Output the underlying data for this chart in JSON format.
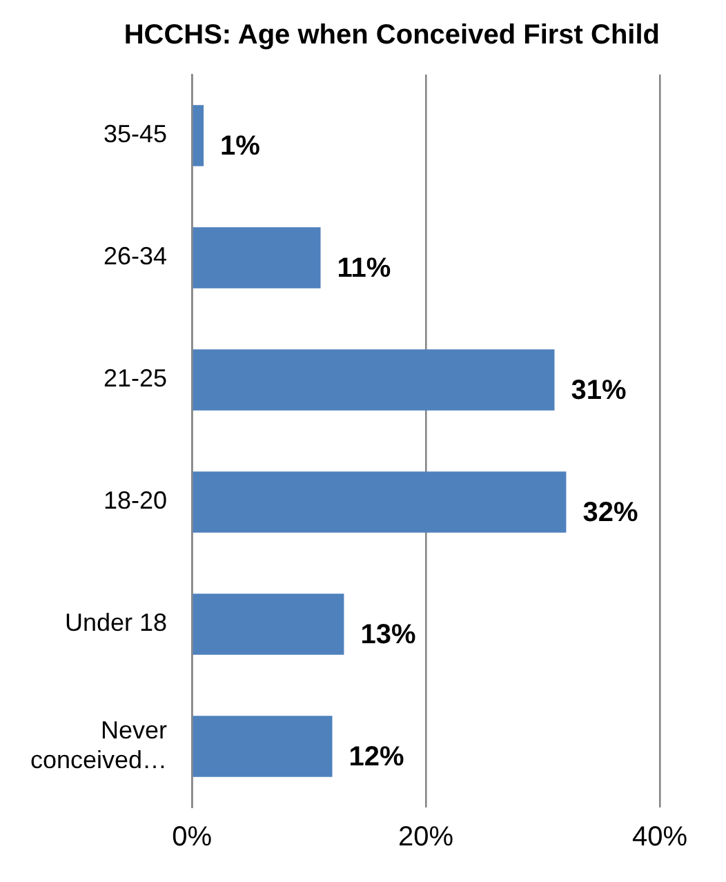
{
  "chart_data": {
    "type": "bar",
    "orientation": "horizontal",
    "title": "HCCHS: Age when Conceived First Child",
    "categories": [
      "35-45",
      "26-34",
      "21-25",
      "18-20",
      "Under 18",
      "Never conceived…"
    ],
    "values": [
      1,
      11,
      31,
      32,
      13,
      12
    ],
    "value_labels": [
      "1%",
      "11%",
      "31%",
      "32%",
      "13%",
      "12%"
    ],
    "color": "#4f81bd",
    "xlim": [
      0,
      40
    ],
    "xticks": [
      {
        "value": 0,
        "label": "0%"
      },
      {
        "value": 20,
        "label": "20%"
      },
      {
        "value": 40,
        "label": "40%"
      }
    ],
    "grid": "x",
    "legend": false
  }
}
